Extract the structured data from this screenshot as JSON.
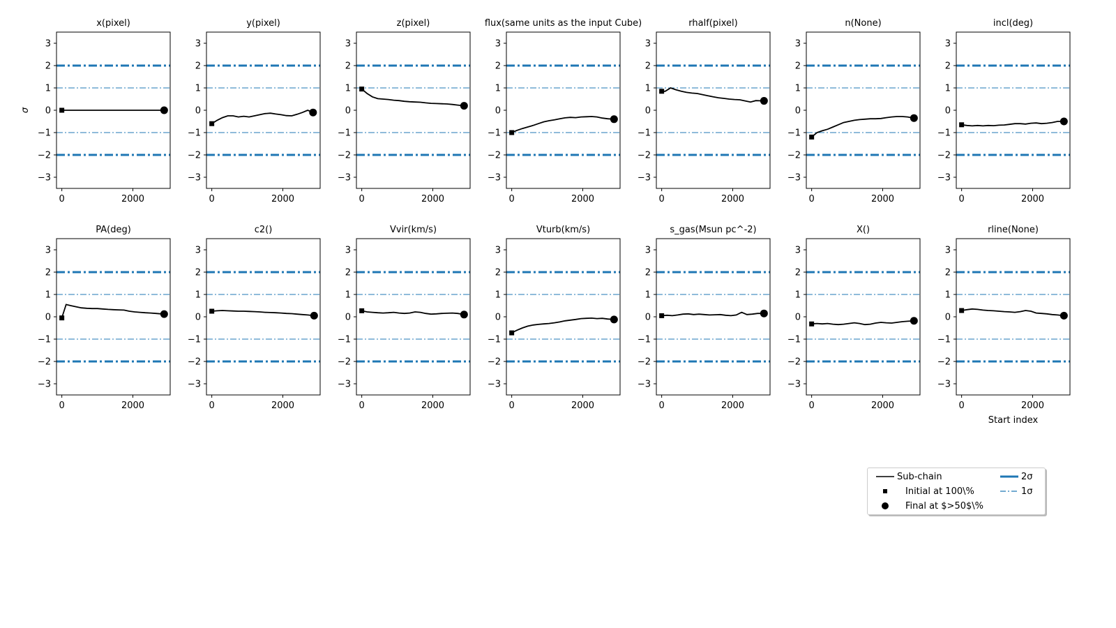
{
  "chart_data": {
    "type": "line",
    "ylabel": "σ",
    "xlabel": "Start index",
    "ylim": [
      -3.5,
      3.5
    ],
    "xlim": [
      -150,
      3050
    ],
    "yticks": [
      -3,
      -2,
      -1,
      0,
      1,
      2,
      3
    ],
    "xticks": [
      0,
      2000
    ],
    "reference_lines": [
      {
        "name": "2σ",
        "values": [
          2,
          -2
        ],
        "color": "#1f77b4",
        "style": "thick dash-dot"
      },
      {
        "name": "1σ",
        "values": [
          1,
          -1
        ],
        "color": "#1f77b4",
        "style": "thin dash-dot"
      }
    ],
    "colors": {
      "line": "#000000",
      "reference": "#1f77b4"
    },
    "legend_placement": "lower-right",
    "panels": [
      {
        "title": "x(pixel)",
        "x": [
          0,
          2880
        ],
        "y": [
          0.0,
          0.0
        ]
      },
      {
        "title": "y(pixel)",
        "x": [
          0,
          150,
          300,
          450,
          600,
          750,
          900,
          1050,
          1200,
          1350,
          1500,
          1650,
          1800,
          1950,
          2100,
          2250,
          2400,
          2550,
          2700,
          2850
        ],
        "y": [
          -0.6,
          -0.45,
          -0.33,
          -0.25,
          -0.25,
          -0.3,
          -0.27,
          -0.3,
          -0.25,
          -0.2,
          -0.15,
          -0.13,
          -0.17,
          -0.2,
          -0.24,
          -0.25,
          -0.18,
          -0.1,
          0.0,
          -0.1
        ]
      },
      {
        "title": "z(pixel)",
        "x": [
          0,
          150,
          300,
          450,
          600,
          750,
          900,
          1050,
          1200,
          1350,
          1500,
          1650,
          1800,
          1950,
          2100,
          2250,
          2400,
          2550,
          2700,
          2880
        ],
        "y": [
          0.95,
          0.75,
          0.6,
          0.52,
          0.5,
          0.48,
          0.45,
          0.43,
          0.4,
          0.38,
          0.37,
          0.36,
          0.33,
          0.31,
          0.3,
          0.29,
          0.28,
          0.26,
          0.23,
          0.2
        ]
      },
      {
        "title": "flux(same units as the input Cube)",
        "x": [
          0,
          150,
          300,
          450,
          600,
          750,
          900,
          1050,
          1200,
          1350,
          1500,
          1650,
          1800,
          1950,
          2100,
          2250,
          2400,
          2550,
          2700,
          2880
        ],
        "y": [
          -1.0,
          -0.9,
          -0.82,
          -0.75,
          -0.68,
          -0.6,
          -0.52,
          -0.47,
          -0.43,
          -0.38,
          -0.34,
          -0.32,
          -0.33,
          -0.3,
          -0.29,
          -0.28,
          -0.3,
          -0.35,
          -0.38,
          -0.4
        ]
      },
      {
        "title": "rhalf(pixel)",
        "x": [
          0,
          100,
          250,
          400,
          550,
          700,
          850,
          1000,
          1150,
          1300,
          1450,
          1600,
          1750,
          1900,
          2050,
          2200,
          2350,
          2500,
          2650,
          2880
        ],
        "y": [
          0.85,
          0.85,
          1.0,
          0.92,
          0.85,
          0.8,
          0.77,
          0.75,
          0.7,
          0.65,
          0.6,
          0.56,
          0.53,
          0.5,
          0.48,
          0.47,
          0.42,
          0.37,
          0.43,
          0.42
        ]
      },
      {
        "title": "n(None)",
        "x": [
          0,
          150,
          300,
          450,
          600,
          750,
          900,
          1050,
          1200,
          1350,
          1500,
          1650,
          1800,
          1950,
          2100,
          2250,
          2400,
          2550,
          2700,
          2880
        ],
        "y": [
          -1.2,
          -1.0,
          -0.92,
          -0.85,
          -0.75,
          -0.65,
          -0.55,
          -0.5,
          -0.45,
          -0.42,
          -0.4,
          -0.38,
          -0.38,
          -0.37,
          -0.33,
          -0.3,
          -0.28,
          -0.28,
          -0.3,
          -0.35
        ]
      },
      {
        "title": "incl(deg)",
        "x": [
          0,
          150,
          300,
          450,
          600,
          750,
          900,
          1050,
          1200,
          1350,
          1500,
          1650,
          1800,
          1950,
          2100,
          2250,
          2400,
          2550,
          2700,
          2880
        ],
        "y": [
          -0.65,
          -0.68,
          -0.7,
          -0.68,
          -0.7,
          -0.68,
          -0.69,
          -0.67,
          -0.66,
          -0.63,
          -0.6,
          -0.6,
          -0.62,
          -0.58,
          -0.57,
          -0.6,
          -0.58,
          -0.55,
          -0.5,
          -0.5
        ]
      },
      {
        "title": "PA(deg)",
        "x": [
          0,
          120,
          250,
          400,
          550,
          700,
          850,
          1000,
          1150,
          1300,
          1450,
          1600,
          1750,
          1900,
          2050,
          2200,
          2350,
          2500,
          2650,
          2880
        ],
        "y": [
          -0.05,
          0.55,
          0.5,
          0.45,
          0.4,
          0.38,
          0.37,
          0.37,
          0.35,
          0.33,
          0.32,
          0.31,
          0.3,
          0.25,
          0.22,
          0.2,
          0.18,
          0.17,
          0.15,
          0.12
        ]
      },
      {
        "title": "c2()",
        "x": [
          0,
          150,
          300,
          450,
          600,
          750,
          900,
          1050,
          1200,
          1350,
          1500,
          1650,
          1800,
          1950,
          2100,
          2250,
          2400,
          2550,
          2700,
          2880
        ],
        "y": [
          0.25,
          0.27,
          0.28,
          0.27,
          0.26,
          0.25,
          0.25,
          0.24,
          0.23,
          0.22,
          0.2,
          0.19,
          0.18,
          0.17,
          0.15,
          0.14,
          0.12,
          0.1,
          0.08,
          0.05
        ]
      },
      {
        "title": "Vvir(km/s)",
        "x": [
          0,
          150,
          300,
          450,
          600,
          750,
          900,
          1050,
          1200,
          1350,
          1500,
          1650,
          1800,
          1950,
          2100,
          2250,
          2400,
          2550,
          2700,
          2880
        ],
        "y": [
          0.27,
          0.22,
          0.2,
          0.18,
          0.17,
          0.18,
          0.2,
          0.17,
          0.15,
          0.17,
          0.22,
          0.2,
          0.15,
          0.12,
          0.13,
          0.15,
          0.16,
          0.17,
          0.15,
          0.1
        ]
      },
      {
        "title": "Vturb(km/s)",
        "x": [
          0,
          150,
          300,
          450,
          600,
          750,
          900,
          1050,
          1200,
          1350,
          1500,
          1650,
          1800,
          1950,
          2100,
          2250,
          2400,
          2550,
          2700,
          2880
        ],
        "y": [
          -0.72,
          -0.6,
          -0.5,
          -0.42,
          -0.37,
          -0.34,
          -0.32,
          -0.3,
          -0.27,
          -0.23,
          -0.18,
          -0.15,
          -0.12,
          -0.08,
          -0.07,
          -0.06,
          -0.08,
          -0.07,
          -0.1,
          -0.12
        ]
      },
      {
        "title": "s_gas(Msun pc^-2)",
        "x": [
          0,
          150,
          300,
          450,
          600,
          750,
          900,
          1050,
          1200,
          1350,
          1500,
          1650,
          1800,
          1950,
          2100,
          2250,
          2400,
          2550,
          2700,
          2880
        ],
        "y": [
          0.05,
          0.07,
          0.05,
          0.08,
          0.12,
          0.13,
          0.1,
          0.12,
          0.1,
          0.08,
          0.09,
          0.1,
          0.07,
          0.05,
          0.08,
          0.2,
          0.1,
          0.12,
          0.15,
          0.15
        ]
      },
      {
        "title": "X()",
        "x": [
          0,
          150,
          300,
          450,
          600,
          750,
          900,
          1050,
          1200,
          1350,
          1500,
          1650,
          1800,
          1950,
          2100,
          2250,
          2400,
          2550,
          2700,
          2880
        ],
        "y": [
          -0.32,
          -0.3,
          -0.32,
          -0.3,
          -0.33,
          -0.35,
          -0.33,
          -0.3,
          -0.27,
          -0.3,
          -0.35,
          -0.33,
          -0.28,
          -0.25,
          -0.27,
          -0.28,
          -0.25,
          -0.22,
          -0.2,
          -0.18
        ]
      },
      {
        "title": "rline(None)",
        "x": [
          0,
          150,
          300,
          450,
          600,
          750,
          900,
          1050,
          1200,
          1350,
          1500,
          1650,
          1800,
          1950,
          2100,
          2250,
          2400,
          2550,
          2700,
          2880
        ],
        "y": [
          0.28,
          0.32,
          0.35,
          0.33,
          0.3,
          0.28,
          0.27,
          0.25,
          0.23,
          0.22,
          0.2,
          0.23,
          0.28,
          0.25,
          0.17,
          0.15,
          0.13,
          0.1,
          0.08,
          0.05
        ]
      }
    ],
    "legend": [
      {
        "label": "Sub-chain",
        "kind": "line"
      },
      {
        "label": "Initial at 100\\%",
        "kind": "square"
      },
      {
        "label": "Final at $>50$\\%",
        "kind": "circle"
      },
      {
        "label": "2σ",
        "kind": "thick-dashdot"
      },
      {
        "label": "1σ",
        "kind": "thin-dashdot"
      }
    ]
  }
}
